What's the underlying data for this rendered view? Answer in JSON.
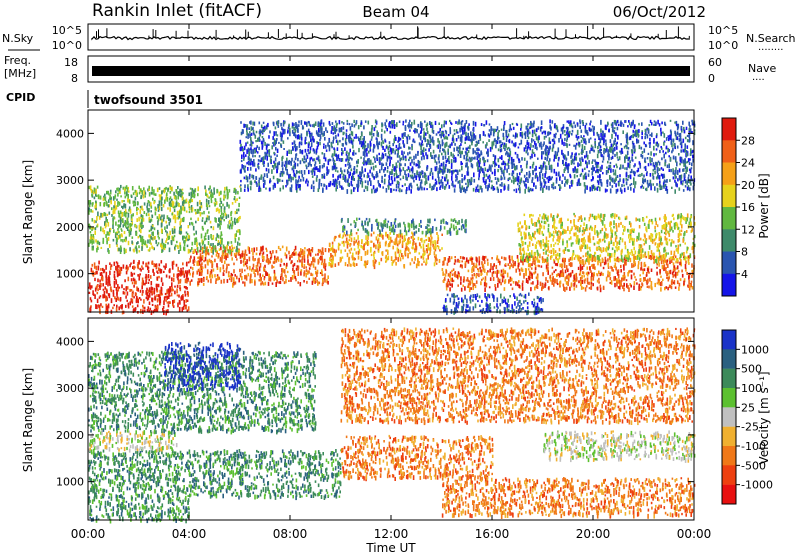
{
  "header": {
    "station": "Rankin Inlet (fitACF)",
    "beam": "Beam 04",
    "date": "06/Oct/2012"
  },
  "noise_panel": {
    "left_label": "N.Sky",
    "right_label": "N.Search",
    "right_dots": "........",
    "ticks": [
      "10^5",
      "10^0"
    ]
  },
  "freq_panel": {
    "label_top": "Freq.",
    "label_unit": "[MHz]",
    "left_ticks": [
      "18",
      "8"
    ],
    "right_ticks": [
      "60",
      "0"
    ],
    "right_label": "Nave",
    "right_dots": "...."
  },
  "cpid": {
    "label": "CPID",
    "value": "twofsound 3501"
  },
  "chart_data": [
    {
      "type": "heatmap",
      "parameter": "power",
      "ylabel": "Slant Range [km]",
      "ylim": [
        180,
        4500
      ],
      "yticks": [
        "1000",
        "2000",
        "3000",
        "4000"
      ],
      "xlabel": "Time UT",
      "xlim_hours": [
        0,
        24
      ],
      "xticks": [
        "00:00",
        "04:00",
        "08:00",
        "12:00",
        "16:00",
        "20:00",
        "00:00"
      ],
      "colorbar": {
        "label": "Power [dB]",
        "ticks": [
          "4",
          "8",
          "12",
          "16",
          "20",
          "24",
          "28"
        ],
        "colors": [
          "#1515e8",
          "#2a55b0",
          "#3e8a6a",
          "#61b840",
          "#e6d21c",
          "#f5a018",
          "#f06018",
          "#e01b0e"
        ]
      },
      "regions": [
        {
          "t0": 0.0,
          "t1": 4.0,
          "r0": 200,
          "r1": 1300,
          "level": 7
        },
        {
          "t0": 4.0,
          "t1": 9.5,
          "r0": 800,
          "r1": 1600,
          "level": 6
        },
        {
          "t0": 9.5,
          "t1": 14.0,
          "r0": 1200,
          "r1": 1900,
          "level": 5
        },
        {
          "t0": 14.0,
          "t1": 24.0,
          "r0": 700,
          "r1": 1400,
          "level": 6
        },
        {
          "t0": 0.0,
          "t1": 6.0,
          "r0": 1500,
          "r1": 2900,
          "level": 3
        },
        {
          "t0": 10.0,
          "t1": 15.0,
          "r0": 1900,
          "r1": 2200,
          "level": 2
        },
        {
          "t0": 17.0,
          "t1": 24.0,
          "r0": 1300,
          "r1": 2300,
          "level": 4
        },
        {
          "t0": 14.0,
          "t1": 18.0,
          "r0": 200,
          "r1": 600,
          "level": 1
        },
        {
          "t0": 6.0,
          "t1": 24.0,
          "r0": 2800,
          "r1": 4300,
          "level": 1
        }
      ]
    },
    {
      "type": "heatmap",
      "parameter": "velocity",
      "ylabel": "Slant Range [km]",
      "ylim": [
        180,
        4500
      ],
      "yticks": [
        "1000",
        "2000",
        "3000",
        "4000"
      ],
      "xlabel": "Time UT",
      "xlim_hours": [
        0,
        24
      ],
      "xticks": [
        "00:00",
        "04:00",
        "08:00",
        "12:00",
        "16:00",
        "20:00",
        "00:00"
      ],
      "colorbar": {
        "label": "Velocity [m s⁻¹]",
        "ticks": [
          "1000",
          "500",
          "100",
          "25",
          "-25",
          "-100",
          "-500",
          "-1000"
        ],
        "colors": [
          "#1a33c8",
          "#2a6080",
          "#3c8a5a",
          "#5cc030",
          "#c0c0c0",
          "#f0b030",
          "#f07818",
          "#ee4010",
          "#e81010"
        ]
      },
      "regions": [
        {
          "t0": 0.0,
          "t1": 10.0,
          "r0": 700,
          "r1": 1700,
          "level": 2
        },
        {
          "t0": 0.0,
          "t1": 4.0,
          "r0": 200,
          "r1": 700,
          "level": 2
        },
        {
          "t0": 0.0,
          "t1": 3.5,
          "r0": 1700,
          "r1": 2100,
          "level": 4
        },
        {
          "t0": 10.0,
          "t1": 16.0,
          "r0": 1100,
          "r1": 2000,
          "level": 6
        },
        {
          "t0": 14.0,
          "t1": 24.0,
          "r0": 300,
          "r1": 1100,
          "level": 6
        },
        {
          "t0": 18.0,
          "t1": 24.0,
          "r0": 1500,
          "r1": 2100,
          "level": 4
        },
        {
          "t0": 0.0,
          "t1": 9.0,
          "r0": 2100,
          "r1": 3800,
          "level": 2
        },
        {
          "t0": 10.0,
          "t1": 24.0,
          "r0": 2300,
          "r1": 4300,
          "level": 6
        },
        {
          "t0": 3.0,
          "t1": 6.0,
          "r0": 3000,
          "r1": 4000,
          "level": 0
        }
      ]
    }
  ]
}
